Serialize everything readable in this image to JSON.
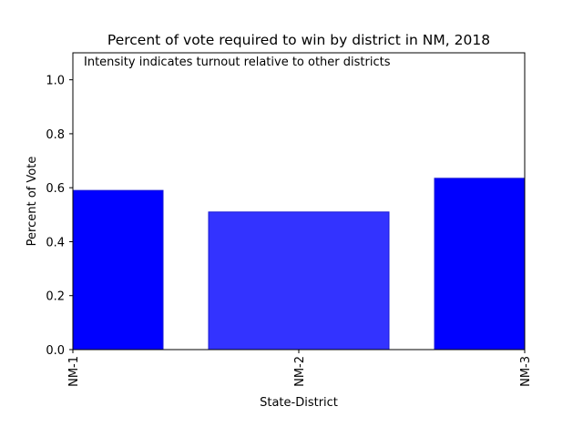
{
  "chart_data": {
    "type": "bar",
    "title": "Percent of vote required to win by district in NM, 2018",
    "annotation": "Intensity indicates turnout relative to other districts",
    "xlabel": "State-District",
    "ylabel": "Percent of Vote",
    "categories": [
      "NM-1",
      "NM-2",
      "NM-3"
    ],
    "values": [
      0.59,
      0.51,
      0.635
    ],
    "bar_colors": [
      "#0000ff",
      "#3333ff",
      "#0000ff"
    ],
    "bar_edge_color": "#1a1ad6",
    "ylim": [
      0,
      1.1
    ],
    "yticks": [
      0.0,
      0.2,
      0.4,
      0.6,
      0.8,
      1.0
    ],
    "ytick_labels": [
      "0.0",
      "0.2",
      "0.4",
      "0.6",
      "0.8",
      "1.0"
    ],
    "grid": false,
    "legend": "none"
  }
}
